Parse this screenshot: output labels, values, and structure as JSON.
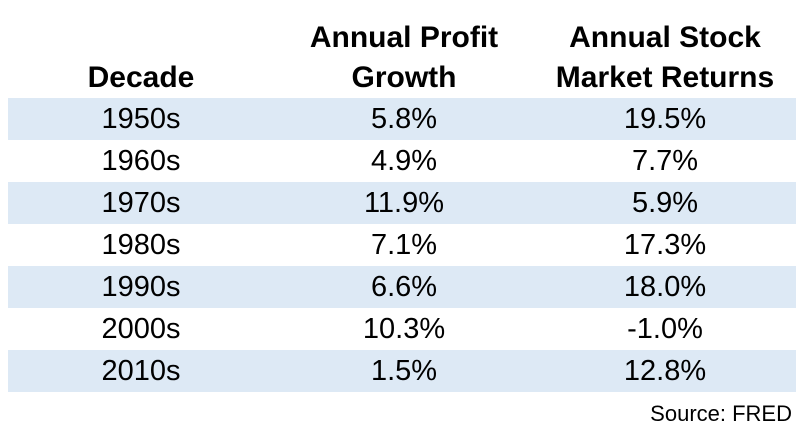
{
  "chart_data": {
    "type": "table",
    "columns": [
      "Decade",
      "Annual Profit Growth",
      "Annual Stock Market Returns"
    ],
    "header_lines": [
      [
        "Decade"
      ],
      [
        "Annual Profit",
        "Growth"
      ],
      [
        "Annual Stock",
        "Market Returns"
      ]
    ],
    "rows": [
      [
        "1950s",
        "5.8%",
        "19.5%"
      ],
      [
        "1960s",
        "4.9%",
        "7.7%"
      ],
      [
        "1970s",
        "11.9%",
        "5.9%"
      ],
      [
        "1980s",
        "7.1%",
        "17.3%"
      ],
      [
        "1990s",
        "6.6%",
        "18.0%"
      ],
      [
        "2000s",
        "10.3%",
        "-1.0%"
      ],
      [
        "2010s",
        "1.5%",
        "12.8%"
      ]
    ],
    "shaded_row_color": "#dde9f5",
    "source": "Source: FRED"
  }
}
